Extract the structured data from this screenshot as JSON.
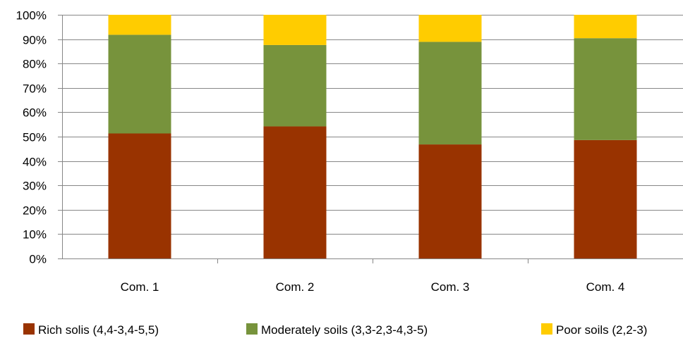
{
  "chart_data": {
    "type": "bar",
    "stacked": true,
    "percent": true,
    "categories": [
      "Com. 1",
      "Com. 2",
      "Com. 3",
      "Com. 4"
    ],
    "series": [
      {
        "name": "Rich solis (4,4-3,4-5,5)",
        "color": "#993300",
        "values": [
          51.3,
          54.2,
          46.8,
          48.6
        ]
      },
      {
        "name": "Moderately soils (3,3-2,3-4,3-5)",
        "color": "#77933C",
        "values": [
          40.5,
          33.4,
          42.1,
          41.8
        ]
      },
      {
        "name": "Poor soils (2,2-3)",
        "color": "#FFCC00",
        "values": [
          8.2,
          12.4,
          11.1,
          9.6
        ]
      }
    ],
    "ylim": [
      0,
      100
    ],
    "ytick_labels": [
      "0%",
      "10%",
      "20%",
      "30%",
      "40%",
      "50%",
      "60%",
      "70%",
      "80%",
      "90%",
      "100%"
    ],
    "grid": true,
    "legend_position": "bottom",
    "title": "",
    "xlabel": "",
    "ylabel": ""
  }
}
